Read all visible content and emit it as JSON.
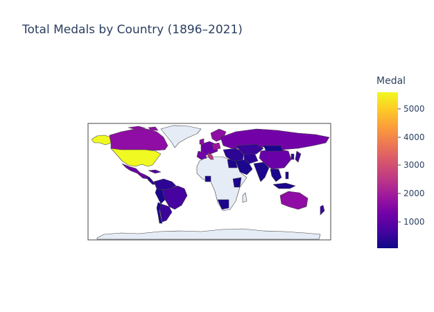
{
  "title": "Total Medals by Country (1896–2021)",
  "map": {
    "projection": "equirectangular",
    "land_color": "#e5ecf6",
    "border_color": "#444444",
    "no_data_color": "#e5ecf6"
  },
  "colorbar": {
    "title": "Medal",
    "range": [
      1,
      5600
    ],
    "ticks": [
      "1000",
      "2000",
      "3000",
      "4000",
      "5000"
    ],
    "colorscale": [
      "#0d0887",
      "#46039f",
      "#7201a8",
      "#9c179e",
      "#bd3786",
      "#d8576b",
      "#ed7953",
      "#fb9f3a",
      "#fdca26",
      "#f0f921"
    ]
  },
  "colors": {
    "text": "#2a3f5f",
    "high": "#f0f921",
    "mid": "#9c179e",
    "low": "#46039f"
  }
}
